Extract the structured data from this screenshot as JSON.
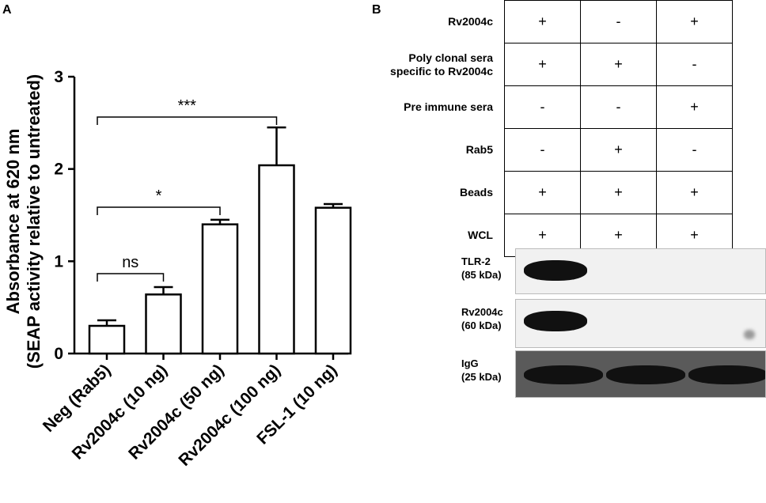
{
  "panel_a_letter": "A",
  "panel_b_letter": "B",
  "chart_data": {
    "type": "bar",
    "categories": [
      "Neg (Rab5)",
      "Rv2004c (10 ng)",
      "Rv2004c (50 ng)",
      "Rv2004c (100 ng)",
      "FSL-1 (10 ng)"
    ],
    "values": [
      0.3,
      0.64,
      1.4,
      2.04,
      1.58
    ],
    "errors": [
      0.06,
      0.08,
      0.05,
      0.41,
      0.04
    ],
    "ylabel_line1": "Absorbance at 620 nm",
    "ylabel_line2": "(SEAP activity relative to untreated)",
    "ylim": [
      0,
      3
    ],
    "yticks": [
      "0",
      "1",
      "2",
      "3"
    ],
    "significance": [
      {
        "from": 0,
        "to": 1,
        "label": "ns"
      },
      {
        "from": 0,
        "to": 2,
        "label": "*"
      },
      {
        "from": 0,
        "to": 3,
        "label": "***"
      }
    ]
  },
  "condition_table": {
    "rows": [
      {
        "label": "Rv2004c",
        "values": [
          "+",
          "-",
          "+"
        ]
      },
      {
        "label": "Poly clonal sera specific to Rv2004c",
        "values": [
          "+",
          "+",
          "-"
        ]
      },
      {
        "label": "Pre immune sera",
        "values": [
          "-",
          "-",
          "+"
        ]
      },
      {
        "label": "Rab5",
        "values": [
          "-",
          "+",
          "-"
        ]
      },
      {
        "label": "Beads",
        "values": [
          "+",
          "+",
          "+"
        ]
      },
      {
        "label": "WCL",
        "values": [
          "+",
          "+",
          "+"
        ]
      }
    ]
  },
  "blots": [
    {
      "name": "TLR-2",
      "size": "(85 kDa)",
      "bands": [
        1,
        0,
        0
      ]
    },
    {
      "name": "Rv2004c",
      "size": "(60 kDa)",
      "bands": [
        1,
        0,
        0.15
      ]
    },
    {
      "name": "IgG",
      "size": "(25 kDa)",
      "bands": [
        1,
        1,
        1
      ]
    }
  ],
  "colors": {
    "bar_fill": "#ffffff",
    "stroke": "#000000",
    "band": "#111111"
  }
}
